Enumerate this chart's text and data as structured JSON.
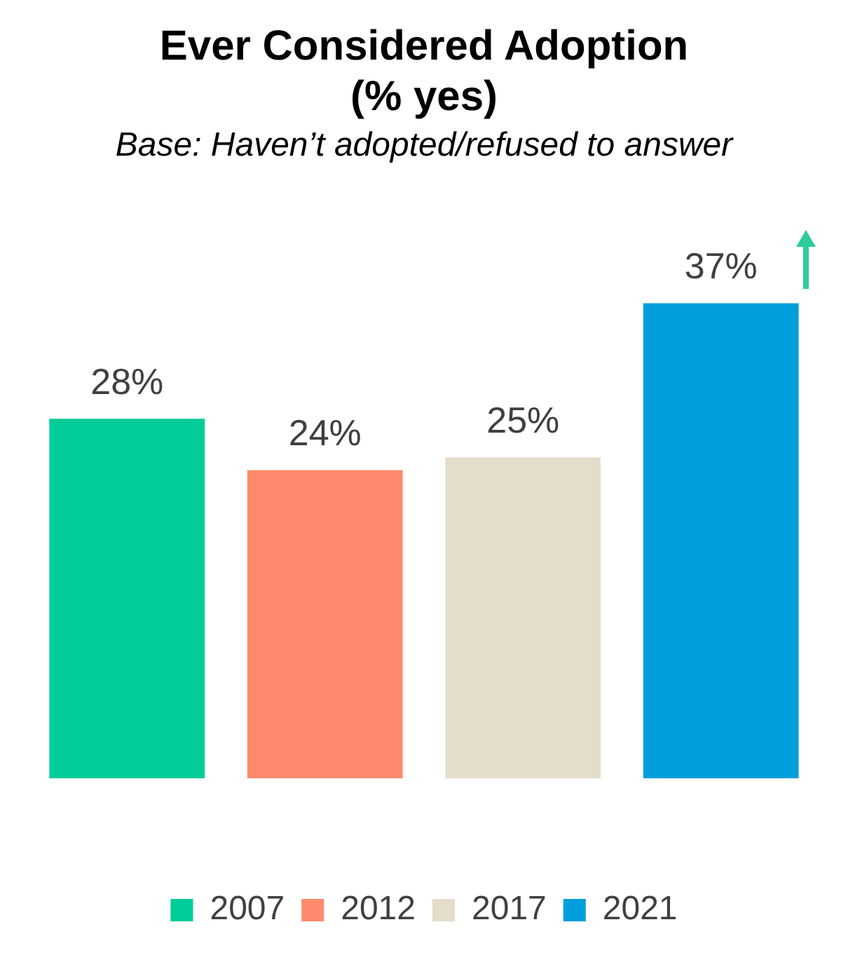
{
  "chart_data": {
    "type": "bar",
    "title": "Ever Considered Adoption\n(% yes)",
    "subtitle": "Base: Haven’t adopted/refused to answer",
    "categories": [
      null
    ],
    "series": [
      {
        "name": "2007",
        "color": "#00cc99",
        "values": [
          28
        ],
        "value_labels": [
          "28%"
        ]
      },
      {
        "name": "2012",
        "color": "#ff8a6b",
        "values": [
          24
        ],
        "value_labels": [
          "24%"
        ]
      },
      {
        "name": "2017",
        "color": "#e4ddcc",
        "values": [
          25
        ],
        "value_labels": [
          "25%"
        ]
      },
      {
        "name": "2021",
        "color": "#009fdb",
        "values": [
          37
        ],
        "value_labels": [
          "37%"
        ]
      }
    ],
    "grid": false,
    "legend": "bottom"
  }
}
